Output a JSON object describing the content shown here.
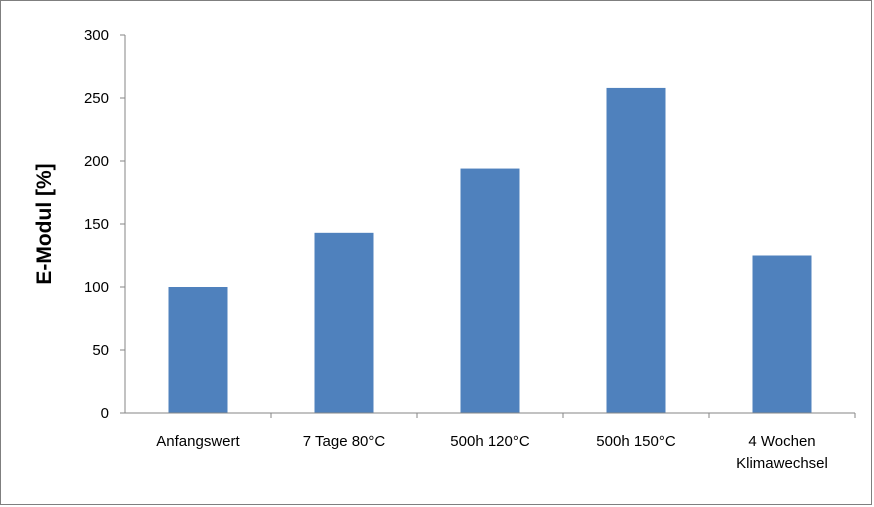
{
  "chart_data": {
    "type": "bar",
    "categories": [
      [
        "Anfangswert"
      ],
      [
        "7 Tage 80°C"
      ],
      [
        "500h 120°C"
      ],
      [
        "500h 150°C"
      ],
      [
        "4 Wochen",
        "Klimawechsel"
      ]
    ],
    "values": [
      100,
      143,
      194,
      258,
      125
    ],
    "ylabel": "E-Modul  [%]",
    "ylim": [
      0,
      300
    ],
    "yticks": [
      0,
      50,
      100,
      150,
      200,
      250,
      300
    ],
    "grid": false,
    "legend": "none",
    "bar_color": "#4f81bd",
    "axis_color": "#868686"
  }
}
